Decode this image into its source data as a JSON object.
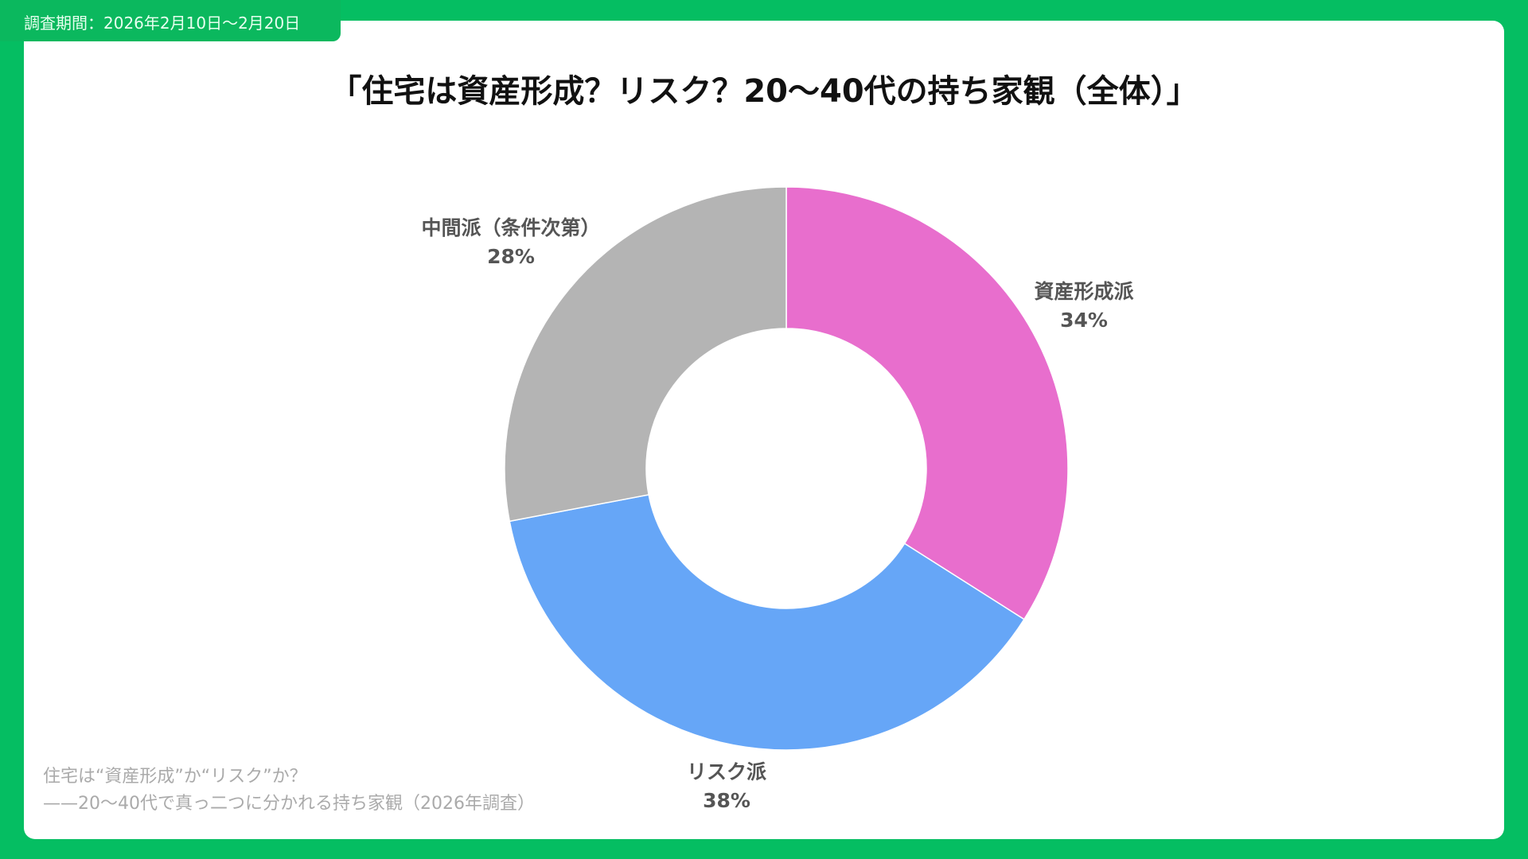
{
  "survey_period": "調査期間：2026年2月10日〜2月20日",
  "chart_data": {
    "type": "pie",
    "donut": true,
    "title": "「住宅は資産形成？リスク？20〜40代の持ち家観（全体）」",
    "start": "top, clockwise",
    "slices": [
      {
        "label": "資産形成派",
        "value": 34,
        "value_label": "34%",
        "color": "#E86ECD"
      },
      {
        "label": "リスク派",
        "value": 38,
        "value_label": "38%",
        "color": "#66A6F7"
      },
      {
        "label": "中間派（条件次第）",
        "value": 28,
        "value_label": "28%",
        "color": "#B4B4B4"
      }
    ]
  },
  "footer": {
    "line1": "住宅は“資産形成”か“リスク”か？",
    "line2": "——20〜40代で真っ二つに分かれる持ち家観（2026年調査）"
  },
  "colors": {
    "frame": "#05BE62",
    "card": "#FFFFFF"
  }
}
